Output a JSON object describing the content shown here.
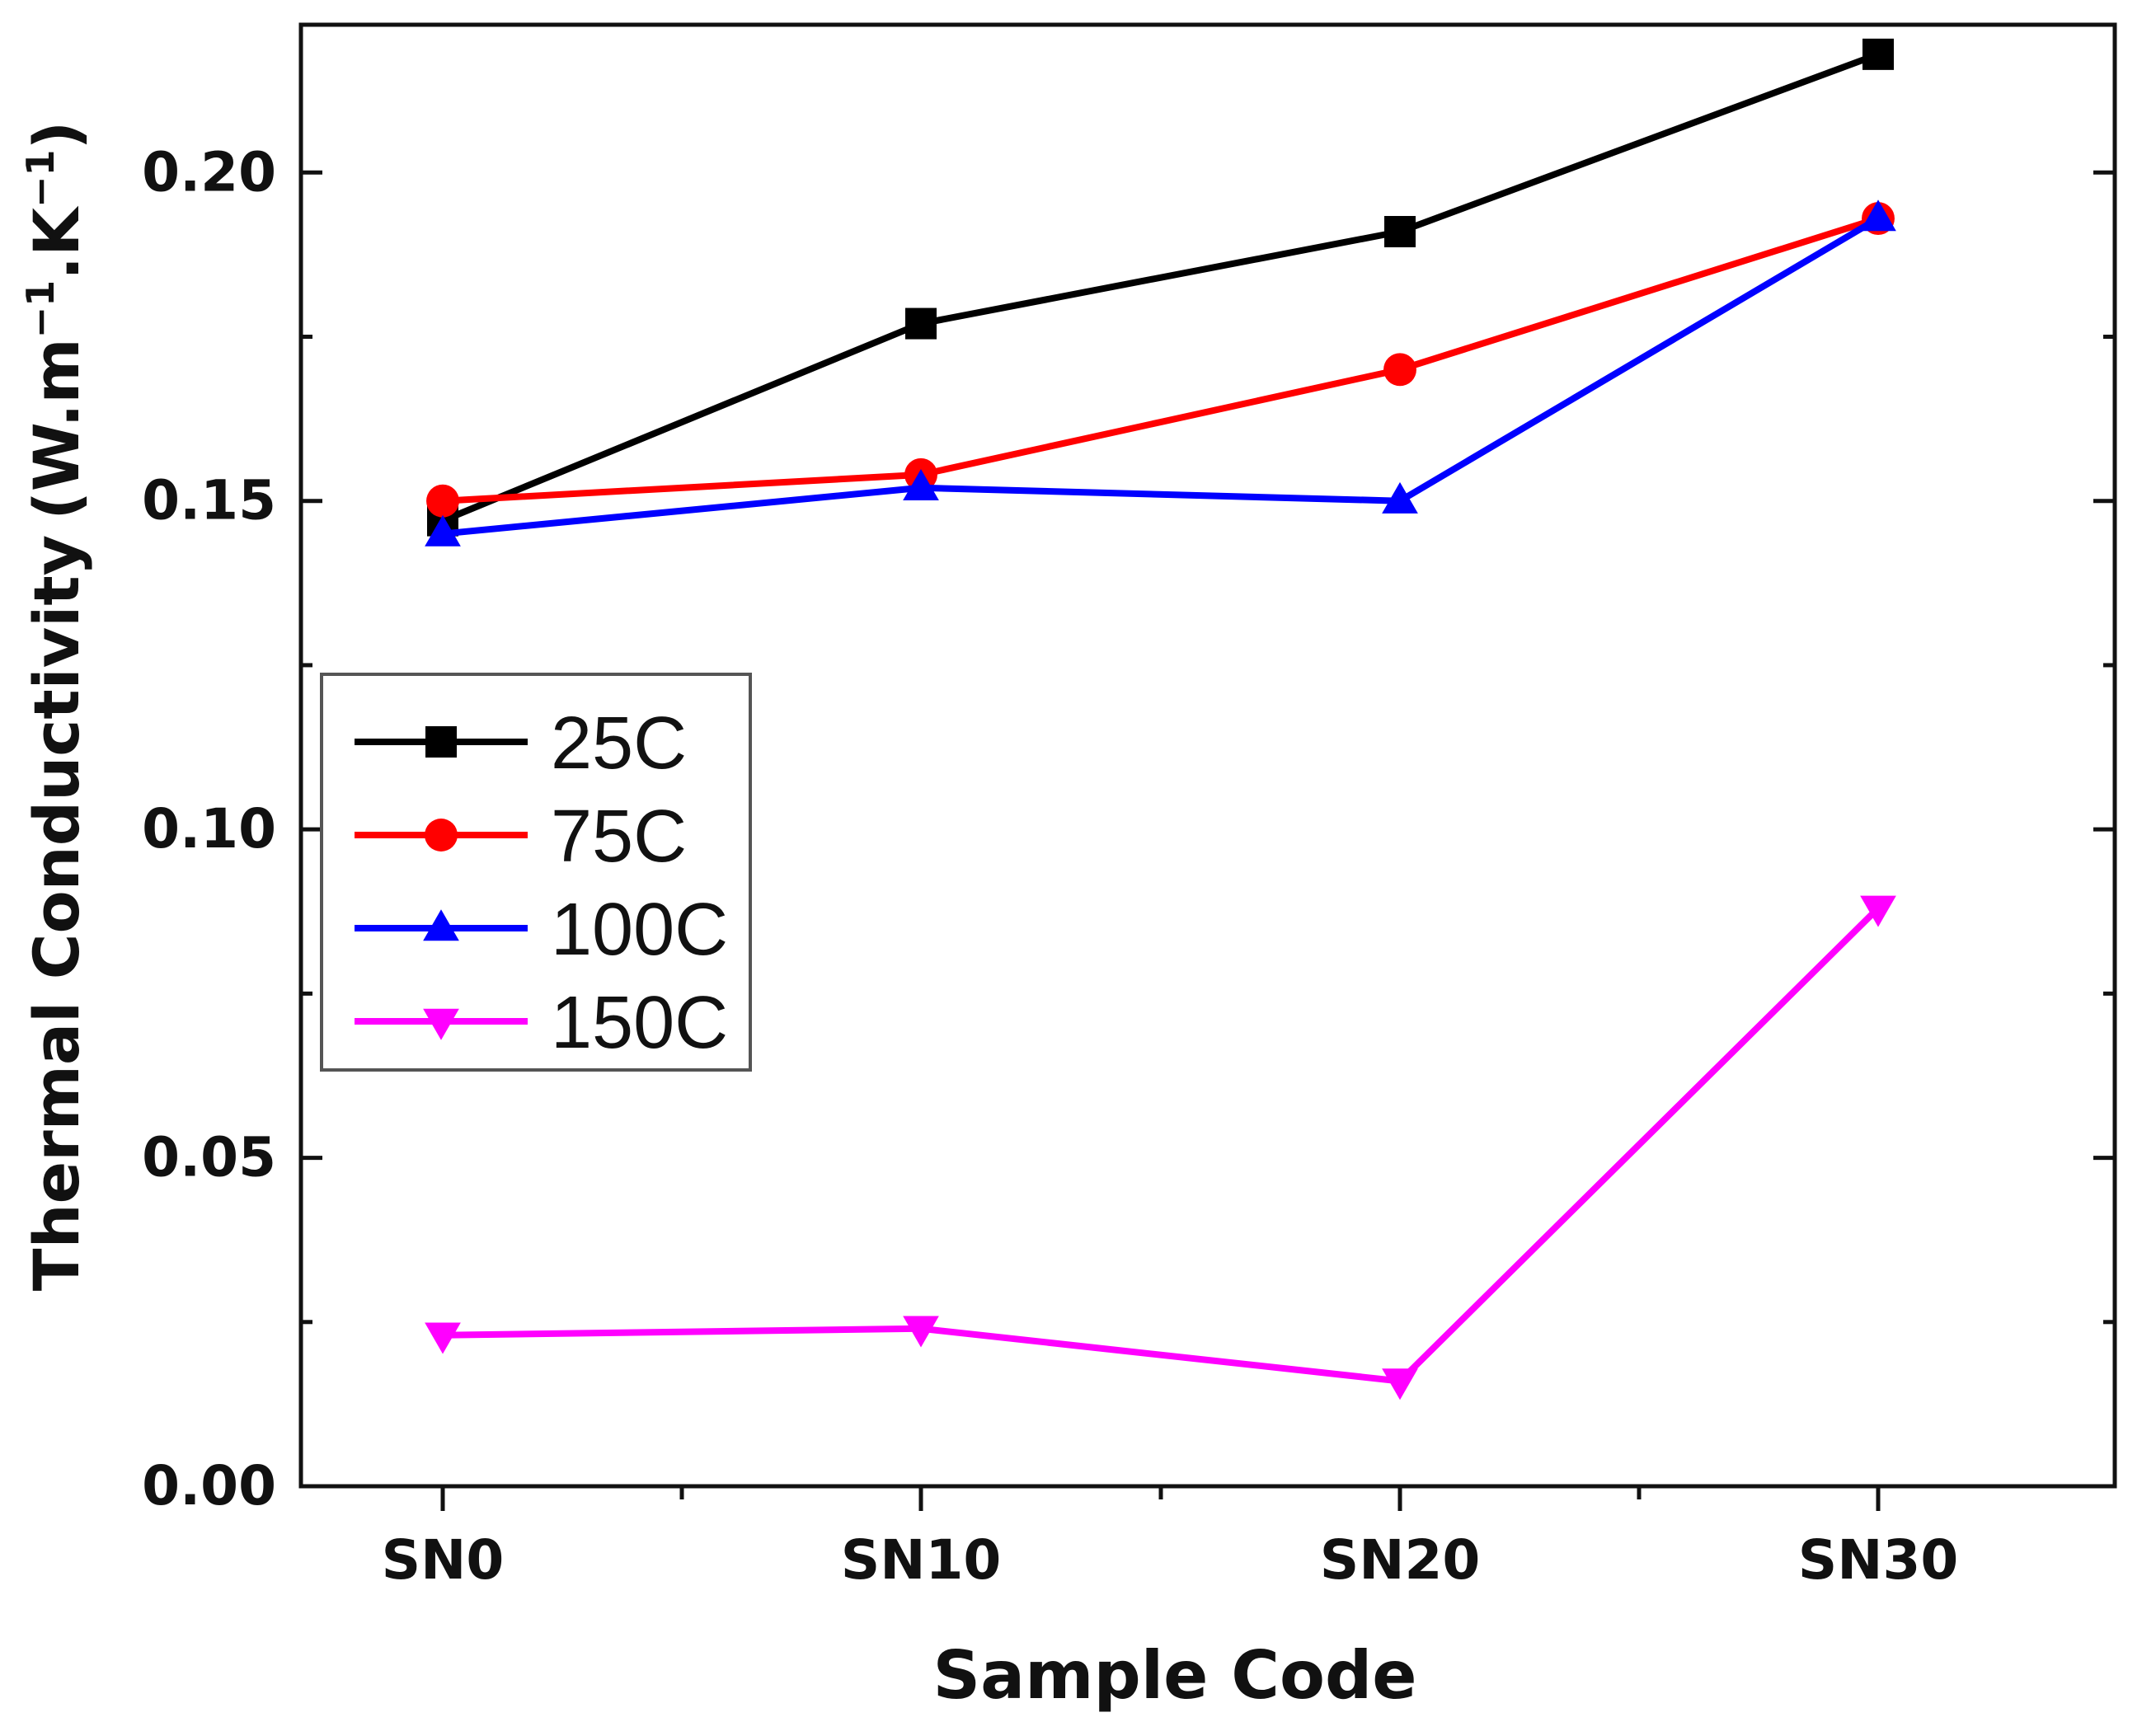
{
  "chart_data": {
    "type": "line",
    "title": "",
    "xlabel": "Sample Code",
    "ylabel": "Thermal Conductivity",
    "ylabel_unit": "(W.m",
    "ylabel_exp1": "−1",
    "ylabel_mid": ".K",
    "ylabel_exp2": "−1",
    "ylabel_close": ")",
    "categories": [
      "SN0",
      "SN10",
      "SN20",
      "SN30"
    ],
    "ylim": [
      0.0,
      0.2225
    ],
    "yticks": [
      0.0,
      0.05,
      0.1,
      0.15,
      0.2
    ],
    "ytick_labels": [
      "0.00",
      "0.05",
      "0.10",
      "0.15",
      "0.20"
    ],
    "grid": false,
    "legend_position": "middle-left",
    "series": [
      {
        "name": "25C",
        "color": "#000000",
        "marker": "square",
        "values": [
          0.147,
          0.177,
          0.191,
          0.218
        ]
      },
      {
        "name": "75C",
        "color": "#ff0000",
        "marker": "circle",
        "values": [
          0.15,
          0.154,
          0.17,
          0.193
        ]
      },
      {
        "name": "100C",
        "color": "#0000ff",
        "marker": "triangle-up",
        "values": [
          0.145,
          0.152,
          0.15,
          0.193
        ]
      },
      {
        "name": "150C",
        "color": "#ff00ff",
        "marker": "triangle-down",
        "values": [
          0.023,
          0.024,
          0.016,
          0.088
        ]
      }
    ]
  }
}
